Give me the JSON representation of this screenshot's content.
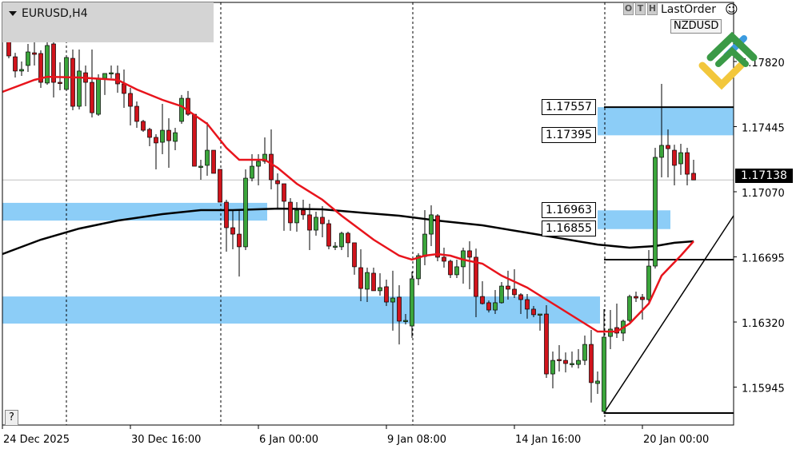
{
  "header": {
    "symbol_label": "EURUSD,H4",
    "last_order_label": "LastOrder",
    "pair_button": "NZDUSD",
    "buttons": [
      "O",
      "T",
      "H"
    ],
    "help_label": "?"
  },
  "colors": {
    "bull": "#3ba53b",
    "bear": "#d0141c",
    "ma_fast": "#e8141c",
    "ma_slow": "#000000",
    "zone": "#8ccdf7"
  },
  "chart_data": {
    "type": "candlestick",
    "symbol": "EURUSD",
    "timeframe": "H4",
    "ylim": [
      1.1579,
      1.18165
    ],
    "y_ticks": [
      "1.17820",
      "1.17445",
      "1.17070",
      "1.16695",
      "1.16320",
      "1.15945"
    ],
    "x_ticks": [
      {
        "label": "24 Dec 2025",
        "bar": -1
      },
      {
        "label": "30 Dec 16:00",
        "bar": 19
      },
      {
        "label": "6 Jan 00:00",
        "bar": 39
      },
      {
        "label": "9 Jan 08:00",
        "bar": 59
      },
      {
        "label": "14 Jan 16:00",
        "bar": 79
      },
      {
        "label": "20 Jan 00:00",
        "bar": 99
      }
    ],
    "bid": "1.17138",
    "candles": [
      [
        1.17995,
        1.17999,
        1.17838,
        1.17852
      ],
      [
        1.17847,
        1.1787,
        1.17728,
        1.17765
      ],
      [
        1.17765,
        1.1782,
        1.17737,
        1.17774
      ],
      [
        1.17797,
        1.17921,
        1.1776,
        1.17875
      ],
      [
        1.1787,
        1.17935,
        1.17797,
        1.17861
      ],
      [
        1.17866,
        1.17884,
        1.17668,
        1.177
      ],
      [
        1.17696,
        1.17967,
        1.17686,
        1.17912
      ],
      [
        1.17921,
        1.17944,
        1.17613,
        1.177
      ],
      [
        1.177,
        1.17815,
        1.17654,
        1.17696
      ],
      [
        1.17659,
        1.17843,
        1.17659,
        1.17843
      ],
      [
        1.17838,
        1.17889,
        1.17539,
        1.17562
      ],
      [
        1.17562,
        1.17889,
        1.17544,
        1.17765
      ],
      [
        1.17755,
        1.17797,
        1.17562,
        1.177
      ],
      [
        1.177,
        1.17889,
        1.17498,
        1.17525
      ],
      [
        1.17516,
        1.17746,
        1.17507,
        1.17723
      ],
      [
        1.17723,
        1.17751,
        1.17627,
        1.17751
      ],
      [
        1.17751,
        1.17797,
        1.17723,
        1.17755
      ],
      [
        1.17751,
        1.17797,
        1.1764,
        1.17691
      ],
      [
        1.17691,
        1.17774,
        1.17553,
        1.17636
      ],
      [
        1.17636,
        1.17668,
        1.17452,
        1.17562
      ],
      [
        1.17562,
        1.1759,
        1.17438,
        1.17475
      ],
      [
        1.17475,
        1.17484,
        1.17415,
        1.17424
      ],
      [
        1.17429,
        1.17438,
        1.17332,
        1.17383
      ],
      [
        1.17383,
        1.17401,
        1.17199,
        1.17351
      ],
      [
        1.17355,
        1.17576,
        1.17286,
        1.17424
      ],
      [
        1.17424,
        1.17493,
        1.17208,
        1.17364
      ],
      [
        1.1736,
        1.17438,
        1.17309,
        1.1741
      ],
      [
        1.17475,
        1.17627,
        1.17461,
        1.17608
      ],
      [
        1.17608,
        1.1765,
        1.17507,
        1.17516
      ],
      [
        1.17516,
        1.17516,
        1.17217,
        1.17217
      ],
      [
        1.17217,
        1.17254,
        1.17139,
        1.17217
      ],
      [
        1.17222,
        1.1747,
        1.17162,
        1.17309
      ],
      [
        1.17309,
        1.17309,
        1.17176,
        1.17176
      ],
      [
        1.17199,
        1.17199,
        1.1701,
        1.1701
      ],
      [
        1.1701,
        1.17024,
        1.16725,
        1.16863
      ],
      [
        1.16863,
        1.16964,
        1.16739,
        1.16826
      ],
      [
        1.16826,
        1.16964,
        1.16582,
        1.16753
      ],
      [
        1.16753,
        1.17199,
        1.16734,
        1.17148
      ],
      [
        1.17148,
        1.17286,
        1.1713,
        1.17217
      ],
      [
        1.17217,
        1.17286,
        1.17107,
        1.17245
      ],
      [
        1.17245,
        1.17383,
        1.17231,
        1.17286
      ],
      [
        1.17286,
        1.17429,
        1.17084,
        1.17139
      ],
      [
        1.17134,
        1.17176,
        1.16978,
        1.17116
      ],
      [
        1.17116,
        1.17116,
        1.16845,
        1.17015
      ],
      [
        1.1701,
        1.17033,
        1.16845,
        1.16891
      ],
      [
        1.16891,
        1.1701,
        1.1684,
        1.16964
      ],
      [
        1.16964,
        1.17024,
        1.16909,
        1.16937
      ],
      [
        1.16937,
        1.17001,
        1.16734,
        1.16849
      ],
      [
        1.16849,
        1.16955,
        1.16817,
        1.16923
      ],
      [
        1.16923,
        1.16987,
        1.16808,
        1.16886
      ],
      [
        1.16886,
        1.16909,
        1.16739,
        1.16757
      ],
      [
        1.16757,
        1.1678,
        1.16734,
        1.16757
      ],
      [
        1.16753,
        1.1684,
        1.16734,
        1.16831
      ],
      [
        1.16831,
        1.1684,
        1.16693,
        1.16776
      ],
      [
        1.16776,
        1.16776,
        1.16592,
        1.16638
      ],
      [
        1.16633,
        1.16739,
        1.1644,
        1.16513
      ],
      [
        1.16509,
        1.16633,
        1.16435,
        1.16605
      ],
      [
        1.16601,
        1.16633,
        1.165,
        1.165
      ],
      [
        1.165,
        1.16601,
        1.16472,
        1.16518
      ],
      [
        1.16523,
        1.16564,
        1.16412,
        1.16435
      ],
      [
        1.16435,
        1.16615,
        1.1627,
        1.16458
      ],
      [
        1.16463,
        1.16532,
        1.16191,
        1.16325
      ],
      [
        1.16329,
        1.16366,
        1.16306,
        1.16329
      ],
      [
        1.16297,
        1.1661,
        1.16228,
        1.16569
      ],
      [
        1.16569,
        1.16716,
        1.16532,
        1.16702
      ],
      [
        1.16697,
        1.16964,
        1.16647,
        1.16826
      ],
      [
        1.16826,
        1.16992,
        1.16757,
        1.16937
      ],
      [
        1.16932,
        1.16941,
        1.1667,
        1.16693
      ],
      [
        1.16693,
        1.16748,
        1.16633,
        1.1667
      ],
      [
        1.1667,
        1.16679,
        1.16573,
        1.16592
      ],
      [
        1.16592,
        1.16679,
        1.16573,
        1.16638
      ],
      [
        1.16638,
        1.16748,
        1.16541,
        1.1673
      ],
      [
        1.1673,
        1.16785,
        1.16509,
        1.16693
      ],
      [
        1.16693,
        1.16743,
        1.16348,
        1.16467
      ],
      [
        1.16467,
        1.16555,
        1.16421,
        1.16426
      ],
      [
        1.16431,
        1.16444,
        1.16375,
        1.16389
      ],
      [
        1.16389,
        1.16504,
        1.16366,
        1.16431
      ],
      [
        1.16431,
        1.1655,
        1.16426,
        1.16527
      ],
      [
        1.16527,
        1.16615,
        1.16449,
        1.16509
      ],
      [
        1.16509,
        1.16624,
        1.16458,
        1.16477
      ],
      [
        1.16477,
        1.16486,
        1.16366,
        1.16449
      ],
      [
        1.16449,
        1.16481,
        1.16339,
        1.16394
      ],
      [
        1.16394,
        1.16412,
        1.16348,
        1.16362
      ],
      [
        1.16366,
        1.16366,
        1.1627,
        1.16366
      ],
      [
        1.16366,
        1.16417,
        1.15998,
        1.16021
      ],
      [
        1.16021,
        1.1615,
        1.15938,
        1.16099
      ],
      [
        1.16104,
        1.16187,
        1.16035,
        1.16099
      ],
      [
        1.16099,
        1.16145,
        1.1603,
        1.16081
      ],
      [
        1.16081,
        1.1615,
        1.16058,
        1.16081
      ],
      [
        1.16076,
        1.16164,
        1.16053,
        1.16099
      ],
      [
        1.16099,
        1.16242,
        1.16072,
        1.16191
      ],
      [
        1.16191,
        1.16274,
        1.15856,
        1.15971
      ],
      [
        1.15966,
        1.16035,
        1.15906,
        1.1598
      ],
      [
        1.15805,
        1.16394,
        1.15791,
        1.16233
      ],
      [
        1.16237,
        1.16389,
        1.16164,
        1.16279
      ],
      [
        1.16288,
        1.16426,
        1.16228,
        1.16256
      ],
      [
        1.16256,
        1.16334,
        1.1621,
        1.16325
      ],
      [
        1.16329,
        1.16477,
        1.1632,
        1.16467
      ],
      [
        1.16467,
        1.16495,
        1.16435,
        1.16458
      ],
      [
        1.16463,
        1.16481,
        1.16334,
        1.16449
      ],
      [
        1.16449,
        1.16734,
        1.16435,
        1.16642
      ],
      [
        1.16642,
        1.17323,
        1.16628,
        1.17268
      ],
      [
        1.17268,
        1.17691,
        1.17153,
        1.17337
      ],
      [
        1.17337,
        1.17429,
        1.17153,
        1.17318
      ],
      [
        1.17309,
        1.17341,
        1.17107,
        1.17222
      ],
      [
        1.17231,
        1.17346,
        1.17167,
        1.17295
      ],
      [
        1.17295,
        1.17323,
        1.17107,
        1.17171
      ],
      [
        1.17176,
        1.17254,
        1.17144,
        1.17138
      ]
    ],
    "ma_fast": [
      [
        -1,
        1.17645
      ],
      [
        4,
        1.17714
      ],
      [
        6,
        1.17732
      ],
      [
        11,
        1.17728
      ],
      [
        17,
        1.17714
      ],
      [
        20,
        1.17659
      ],
      [
        24,
        1.17599
      ],
      [
        27,
        1.17562
      ],
      [
        31,
        1.17461
      ],
      [
        34,
        1.17323
      ],
      [
        36,
        1.17254
      ],
      [
        40,
        1.17254
      ],
      [
        42,
        1.17208
      ],
      [
        45,
        1.17116
      ],
      [
        49,
        1.17024
      ],
      [
        52,
        1.16932
      ],
      [
        57,
        1.16794
      ],
      [
        61,
        1.16702
      ],
      [
        63,
        1.16679
      ],
      [
        65,
        1.16702
      ],
      [
        67,
        1.16711
      ],
      [
        69,
        1.16702
      ],
      [
        71,
        1.16679
      ],
      [
        74,
        1.16656
      ],
      [
        77,
        1.16587
      ],
      [
        81,
        1.16518
      ],
      [
        85,
        1.16426
      ],
      [
        89,
        1.16334
      ],
      [
        92,
        1.16265
      ],
      [
        95,
        1.16265
      ],
      [
        97,
        1.16311
      ],
      [
        100,
        1.16426
      ],
      [
        102,
        1.16587
      ],
      [
        105,
        1.16702
      ],
      [
        107,
        1.16785
      ]
    ],
    "ma_slow": [
      [
        -1,
        1.16711
      ],
      [
        5,
        1.16794
      ],
      [
        11,
        1.16858
      ],
      [
        17,
        1.16904
      ],
      [
        24,
        1.16941
      ],
      [
        30,
        1.16964
      ],
      [
        35,
        1.16964
      ],
      [
        42,
        1.16973
      ],
      [
        49,
        1.16969
      ],
      [
        55,
        1.1695
      ],
      [
        61,
        1.16932
      ],
      [
        67,
        1.16904
      ],
      [
        74,
        1.16877
      ],
      [
        80,
        1.1684
      ],
      [
        86,
        1.16803
      ],
      [
        92,
        1.16766
      ],
      [
        97,
        1.16748
      ],
      [
        101,
        1.16757
      ],
      [
        104,
        1.16776
      ],
      [
        107,
        1.16785
      ]
    ],
    "zones": [
      {
        "from_bar": -1,
        "to_bar": 40,
        "top": 1.17006,
        "bottom": 1.16904
      },
      {
        "from_bar": -1,
        "to_bar": 92,
        "top": 1.16467,
        "bottom": 1.16311
      },
      {
        "from_bar": 93,
        "to_bar": 114,
        "top": 1.17557,
        "bottom": 1.17395,
        "top_label": "1.17557",
        "bottom_label": "1.17395"
      },
      {
        "from_bar": 93,
        "to_bar": 103,
        "top": 1.16963,
        "bottom": 1.16855,
        "top_label": "1.16963",
        "bottom_label": "1.16855"
      }
    ],
    "levels": [
      1.17557,
      1.16679,
      1.15796
    ],
    "trendline": {
      "from": [
        93,
        1.15796
      ],
      "to": [
        113.25,
        1.16932
      ]
    }
  }
}
